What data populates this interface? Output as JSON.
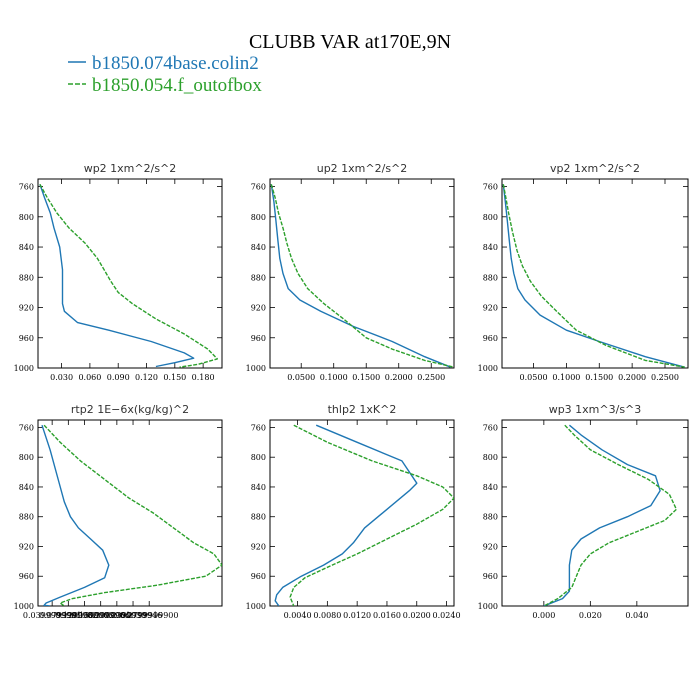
{
  "figure": {
    "title": "CLUBB VAR at170E,9N",
    "legend": [
      {
        "label": "b1850.074base.colin2",
        "color": "#1f77b4",
        "dash": "solid"
      },
      {
        "label": "b1850.054.f_outofbox",
        "color": "#2ca02c",
        "dash": "dashed"
      }
    ]
  },
  "chart_data": [
    {
      "type": "line",
      "title": "wp2  1xm^2/s^2",
      "xlim": [
        0.005,
        0.2
      ],
      "ylim": [
        1000,
        750
      ],
      "xticks": [
        "0.030",
        "0.060",
        "0.090",
        "0.120",
        "0.150",
        "0.180"
      ],
      "xtick_values": [
        0.03,
        0.06,
        0.09,
        0.12,
        0.15,
        0.18
      ],
      "yticks": [
        "760",
        "800",
        "840",
        "880",
        "920",
        "960",
        "1000"
      ],
      "ytick_values": [
        760,
        800,
        840,
        880,
        920,
        960,
        1000
      ],
      "grid": false,
      "series": [
        {
          "color": "#1f77b4",
          "dash": "solid",
          "x": [
            0.007,
            0.012,
            0.018,
            0.022,
            0.028,
            0.031,
            0.031,
            0.033,
            0.047,
            0.08,
            0.125,
            0.16,
            0.17,
            0.15,
            0.13
          ],
          "y": [
            757,
            775,
            795,
            815,
            840,
            870,
            915,
            925,
            940,
            950,
            965,
            980,
            987,
            993,
            998
          ]
        },
        {
          "color": "#2ca02c",
          "dash": "dashed",
          "x": [
            0.007,
            0.015,
            0.025,
            0.038,
            0.055,
            0.068,
            0.075,
            0.082,
            0.09,
            0.105,
            0.13,
            0.16,
            0.185,
            0.195,
            0.175,
            0.155
          ],
          "y": [
            757,
            775,
            795,
            815,
            835,
            855,
            870,
            885,
            900,
            915,
            935,
            955,
            975,
            988,
            995,
            999
          ]
        }
      ]
    },
    {
      "type": "line",
      "title": "up2  1xm^2/s^2",
      "xlim": [
        0.002,
        0.285
      ],
      "ylim": [
        1000,
        750
      ],
      "xticks": [
        "0.0500",
        "0.1000",
        "0.1500",
        "0.2000",
        "0.2500"
      ],
      "xtick_values": [
        0.05,
        0.1,
        0.15,
        0.2,
        0.25
      ],
      "yticks": [
        "760",
        "800",
        "840",
        "880",
        "920",
        "960",
        "1000"
      ],
      "ytick_values": [
        760,
        800,
        840,
        880,
        920,
        960,
        1000
      ],
      "grid": false,
      "series": [
        {
          "color": "#1f77b4",
          "dash": "solid",
          "x": [
            0.004,
            0.008,
            0.011,
            0.014,
            0.017,
            0.022,
            0.03,
            0.048,
            0.08,
            0.13,
            0.19,
            0.24,
            0.28
          ],
          "y": [
            757,
            780,
            805,
            830,
            855,
            875,
            895,
            910,
            925,
            945,
            965,
            985,
            999
          ]
        },
        {
          "color": "#2ca02c",
          "dash": "dashed",
          "x": [
            0.004,
            0.01,
            0.015,
            0.022,
            0.028,
            0.035,
            0.045,
            0.06,
            0.085,
            0.115,
            0.15,
            0.19,
            0.24,
            0.285
          ],
          "y": [
            757,
            775,
            795,
            815,
            835,
            855,
            875,
            895,
            915,
            935,
            960,
            975,
            990,
            999
          ]
        }
      ]
    },
    {
      "type": "line",
      "title": "vp2  1xm^2/s^2",
      "xlim": [
        0.002,
        0.285
      ],
      "ylim": [
        1000,
        750
      ],
      "xticks": [
        "0.0500",
        "0.1000",
        "0.1500",
        "0.2000",
        "0.2500"
      ],
      "xtick_values": [
        0.05,
        0.1,
        0.15,
        0.2,
        0.25
      ],
      "yticks": [
        "760",
        "800",
        "840",
        "880",
        "920",
        "960",
        "1000"
      ],
      "ytick_values": [
        760,
        800,
        840,
        880,
        920,
        960,
        1000
      ],
      "grid": false,
      "series": [
        {
          "color": "#1f77b4",
          "dash": "solid",
          "x": [
            0.004,
            0.007,
            0.01,
            0.013,
            0.016,
            0.02,
            0.026,
            0.037,
            0.06,
            0.1,
            0.15,
            0.22,
            0.28
          ],
          "y": [
            757,
            780,
            805,
            830,
            855,
            875,
            895,
            910,
            930,
            950,
            965,
            985,
            999
          ]
        },
        {
          "color": "#2ca02c",
          "dash": "dashed",
          "x": [
            0.004,
            0.008,
            0.012,
            0.018,
            0.025,
            0.033,
            0.045,
            0.062,
            0.085,
            0.115,
            0.16,
            0.22,
            0.28
          ],
          "y": [
            757,
            775,
            795,
            820,
            845,
            865,
            885,
            905,
            925,
            950,
            970,
            990,
            999
          ]
        }
      ]
    },
    {
      "type": "line",
      "title": "rtp2  1E−6x(kg/kg)^2",
      "xlim": [
        0.005,
        0.46
      ],
      "ylim": [
        1000,
        750
      ],
      "xticks": [
        "0.0399999991",
        "0.0799999982",
        "0.1200000003",
        "0.1599999964",
        "0.2000000030",
        "0.2399999946",
        "0.2799999900"
      ],
      "xtick_values": [
        0.04,
        0.08,
        0.12,
        0.16,
        0.2,
        0.24,
        0.28
      ],
      "yticks": [
        "760",
        "800",
        "840",
        "880",
        "920",
        "960",
        "1000"
      ],
      "ytick_values": [
        760,
        800,
        840,
        880,
        920,
        960,
        1000
      ],
      "grid": false,
      "series": [
        {
          "color": "#1f77b4",
          "dash": "solid",
          "x": [
            0.015,
            0.035,
            0.055,
            0.07,
            0.085,
            0.105,
            0.135,
            0.165,
            0.18,
            0.17,
            0.12,
            0.06,
            0.025,
            0.02,
            0.035
          ],
          "y": [
            757,
            790,
            830,
            860,
            880,
            895,
            910,
            925,
            945,
            962,
            975,
            988,
            996,
            999,
            1000
          ]
        },
        {
          "color": "#2ca02c",
          "dash": "dashed",
          "x": [
            0.02,
            0.06,
            0.11,
            0.17,
            0.23,
            0.29,
            0.34,
            0.39,
            0.44,
            0.46,
            0.42,
            0.3,
            0.17,
            0.09,
            0.06,
            0.07
          ],
          "y": [
            757,
            780,
            805,
            830,
            855,
            875,
            895,
            915,
            930,
            945,
            960,
            972,
            982,
            990,
            996,
            1000
          ]
        }
      ]
    },
    {
      "type": "line",
      "title": "thlp2  1xK^2",
      "xlim": [
        0.0003,
        0.025
      ],
      "ylim": [
        1000,
        750
      ],
      "xticks": [
        "0.0040",
        "0.0080",
        "0.0120",
        "0.0160",
        "0.0200",
        "0.0240"
      ],
      "xtick_values": [
        0.004,
        0.008,
        0.012,
        0.016,
        0.02,
        0.024
      ],
      "yticks": [
        "760",
        "800",
        "840",
        "880",
        "920",
        "960",
        "1000"
      ],
      "ytick_values": [
        760,
        800,
        840,
        880,
        920,
        960,
        1000
      ],
      "grid": false,
      "series": [
        {
          "color": "#1f77b4",
          "dash": "solid",
          "x": [
            0.0065,
            0.012,
            0.018,
            0.02,
            0.019,
            0.016,
            0.013,
            0.0115,
            0.01,
            0.0075,
            0.0045,
            0.002,
            0.0012,
            0.001,
            0.0015
          ],
          "y": [
            757,
            780,
            805,
            835,
            845,
            870,
            895,
            915,
            930,
            945,
            960,
            975,
            985,
            993,
            1000
          ]
        },
        {
          "color": "#2ca02c",
          "dash": "dashed",
          "x": [
            0.0035,
            0.008,
            0.014,
            0.02,
            0.0235,
            0.025,
            0.0235,
            0.02,
            0.016,
            0.012,
            0.008,
            0.005,
            0.0035,
            0.003,
            0.0035
          ],
          "y": [
            757,
            780,
            805,
            825,
            840,
            855,
            870,
            890,
            910,
            930,
            948,
            962,
            975,
            988,
            1000
          ]
        }
      ]
    },
    {
      "type": "line",
      "title": "wp3  1xm^3/s^3",
      "xlim": [
        -0.018,
        0.062
      ],
      "ylim": [
        1000,
        750
      ],
      "xticks": [
        "0.000",
        "0.020",
        "0.040"
      ],
      "xtick_values": [
        0.0,
        0.02,
        0.04
      ],
      "yticks": [
        "760",
        "800",
        "840",
        "880",
        "920",
        "960",
        "1000"
      ],
      "ytick_values": [
        760,
        800,
        840,
        880,
        920,
        960,
        1000
      ],
      "grid": false,
      "series": [
        {
          "color": "#1f77b4",
          "dash": "solid",
          "x": [
            0.011,
            0.016,
            0.025,
            0.036,
            0.048,
            0.05,
            0.046,
            0.036,
            0.024,
            0.016,
            0.012,
            0.011,
            0.011,
            0.011,
            0.008,
            0.0
          ],
          "y": [
            757,
            770,
            790,
            810,
            825,
            845,
            865,
            880,
            895,
            910,
            925,
            945,
            965,
            980,
            990,
            1000
          ]
        },
        {
          "color": "#2ca02c",
          "dash": "dashed",
          "x": [
            0.009,
            0.013,
            0.02,
            0.032,
            0.045,
            0.054,
            0.057,
            0.052,
            0.04,
            0.028,
            0.02,
            0.016,
            0.014,
            0.012,
            0.006,
            0.0
          ],
          "y": [
            757,
            770,
            790,
            810,
            830,
            850,
            870,
            885,
            900,
            915,
            930,
            945,
            960,
            975,
            990,
            1000
          ]
        }
      ]
    }
  ]
}
